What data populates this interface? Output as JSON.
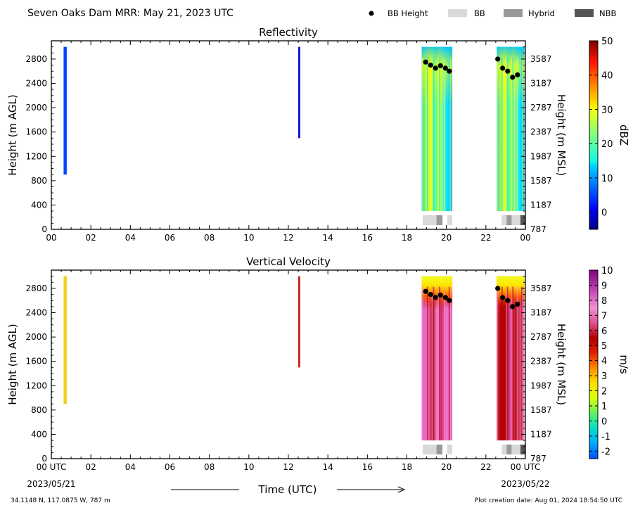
{
  "header": {
    "title": "Seven Oaks Dam MRR:  May 21, 2023 UTC",
    "legend": [
      {
        "label": "BB Height",
        "kind": "dot",
        "color": "#000000"
      },
      {
        "label": "BB",
        "kind": "box",
        "color": "#d9d9d9"
      },
      {
        "label": "Hybrid",
        "kind": "box",
        "color": "#999999"
      },
      {
        "label": "NBB",
        "kind": "box",
        "color": "#555555"
      }
    ]
  },
  "footer": {
    "left_date": "2023/05/21",
    "right_date": "2023/05/22",
    "xlabel": "Time (UTC)",
    "coords": "34.1148 N, 117.0875 W, 787 m",
    "created": "Plot creation date: Aug 01, 2024 18:54:50 UTC"
  },
  "chart_data": [
    {
      "type": "heatmap",
      "title": "Reflectivity",
      "ylabel": "Height (m AGL)",
      "ylabel_right": "Height (m MSL)",
      "ylim": [
        0,
        3100
      ],
      "yticks": [
        0,
        400,
        800,
        1200,
        1600,
        2000,
        2400,
        2800
      ],
      "yticks_right": [
        "787",
        "1187",
        "1587",
        "1987",
        "2387",
        "2787",
        "3187",
        "3587"
      ],
      "xlim_hours": [
        0,
        24
      ],
      "xticks_hours": [
        0,
        2,
        4,
        6,
        8,
        10,
        12,
        14,
        16,
        18,
        20,
        22,
        24
      ],
      "xtick_labels": [
        "00",
        "02",
        "04",
        "06",
        "08",
        "10",
        "12",
        "14",
        "16",
        "18",
        "20",
        "22",
        "00"
      ],
      "colorbar": {
        "label": "dBZ",
        "range": [
          -5,
          50
        ],
        "ticks": [
          "0",
          "10",
          "20",
          "30",
          "40",
          "50"
        ],
        "tick_values": [
          0,
          10,
          20,
          30,
          40,
          50
        ]
      },
      "data_regions": [
        {
          "start_hour": 0.62,
          "end_hour": 0.78,
          "bottom_m": 900,
          "top_m": 3000,
          "typical_value": 2
        },
        {
          "start_hour": 12.5,
          "end_hour": 12.6,
          "bottom_m": 1500,
          "top_m": 3000,
          "typical_value": 0
        },
        {
          "start_hour": 18.75,
          "end_hour": 20.3,
          "bottom_m": 300,
          "top_m": 3000,
          "typical_value": 17
        },
        {
          "start_hour": 22.55,
          "end_hour": 23.95,
          "bottom_m": 300,
          "top_m": 3000,
          "typical_value": 19
        }
      ],
      "bright_band_heights": [
        {
          "hour": 18.95,
          "height": 2750
        },
        {
          "hour": 19.2,
          "height": 2700
        },
        {
          "hour": 19.45,
          "height": 2650
        },
        {
          "hour": 19.7,
          "height": 2690
        },
        {
          "hour": 19.95,
          "height": 2650
        },
        {
          "hour": 20.15,
          "height": 2600
        },
        {
          "hour": 22.6,
          "height": 2800
        },
        {
          "hour": 22.85,
          "height": 2650
        },
        {
          "hour": 23.1,
          "height": 2600
        },
        {
          "hour": 23.35,
          "height": 2500
        },
        {
          "hour": 23.6,
          "height": 2540
        }
      ],
      "band_type_strip": [
        {
          "start_hour": 18.8,
          "end_hour": 19.8,
          "type": "BB"
        },
        {
          "start_hour": 19.5,
          "end_hour": 19.8,
          "type": "Hybrid"
        },
        {
          "start_hour": 20.05,
          "end_hour": 20.3,
          "type": "BB"
        },
        {
          "start_hour": 22.8,
          "end_hour": 24.0,
          "type": "BB"
        },
        {
          "start_hour": 23.05,
          "end_hour": 23.3,
          "type": "Hybrid"
        },
        {
          "start_hour": 23.75,
          "end_hour": 24.0,
          "type": "NBB"
        }
      ]
    },
    {
      "type": "heatmap",
      "title": "Vertical Velocity",
      "ylabel": "Height (m AGL)",
      "ylabel_right": "Height (m MSL)",
      "ylim": [
        0,
        3100
      ],
      "yticks": [
        0,
        400,
        800,
        1200,
        1600,
        2000,
        2400,
        2800
      ],
      "yticks_right": [
        "787",
        "1187",
        "1587",
        "1987",
        "2387",
        "2787",
        "3187",
        "3587"
      ],
      "xlim_hours": [
        0,
        24
      ],
      "xticks_hours": [
        0,
        2,
        4,
        6,
        8,
        10,
        12,
        14,
        16,
        18,
        20,
        22,
        24
      ],
      "xtick_labels": [
        "00 UTC",
        "02",
        "04",
        "06",
        "08",
        "10",
        "12",
        "14",
        "16",
        "18",
        "20",
        "22",
        "00 UTC"
      ],
      "colorbar": {
        "label": "m/s",
        "range": [
          -2.5,
          10
        ],
        "ticks": [
          "-2",
          "-1",
          "0",
          "1",
          "2",
          "3",
          "4",
          "5",
          "6",
          "7",
          "8",
          "9",
          "10"
        ],
        "tick_values": [
          -2,
          -1,
          0,
          1,
          2,
          3,
          4,
          5,
          6,
          7,
          8,
          9,
          10
        ]
      },
      "data_regions": [
        {
          "start_hour": 0.62,
          "end_hour": 0.78,
          "bottom_m": 900,
          "top_m": 3000,
          "typical_value": 3
        },
        {
          "start_hour": 12.5,
          "end_hour": 12.6,
          "bottom_m": 1500,
          "top_m": 3000,
          "typical_value": 5
        },
        {
          "start_hour": 18.75,
          "end_hour": 20.3,
          "bottom_m": 300,
          "top_m": 3000,
          "typical_value": 7.5
        },
        {
          "start_hour": 22.55,
          "end_hour": 23.95,
          "bottom_m": 300,
          "top_m": 3000,
          "typical_value": 6.5
        }
      ],
      "bright_band_heights": [
        {
          "hour": 18.95,
          "height": 2750
        },
        {
          "hour": 19.2,
          "height": 2700
        },
        {
          "hour": 19.45,
          "height": 2650
        },
        {
          "hour": 19.7,
          "height": 2690
        },
        {
          "hour": 19.95,
          "height": 2650
        },
        {
          "hour": 20.15,
          "height": 2600
        },
        {
          "hour": 22.6,
          "height": 2800
        },
        {
          "hour": 22.85,
          "height": 2650
        },
        {
          "hour": 23.1,
          "height": 2600
        },
        {
          "hour": 23.35,
          "height": 2500
        },
        {
          "hour": 23.6,
          "height": 2540
        }
      ],
      "band_type_strip": [
        {
          "start_hour": 18.8,
          "end_hour": 19.8,
          "type": "BB"
        },
        {
          "start_hour": 19.5,
          "end_hour": 19.8,
          "type": "Hybrid"
        },
        {
          "start_hour": 20.05,
          "end_hour": 20.3,
          "type": "BB"
        },
        {
          "start_hour": 22.8,
          "end_hour": 24.0,
          "type": "BB"
        },
        {
          "start_hour": 23.05,
          "end_hour": 23.3,
          "type": "Hybrid"
        },
        {
          "start_hour": 23.75,
          "end_hour": 24.0,
          "type": "NBB"
        }
      ]
    }
  ]
}
